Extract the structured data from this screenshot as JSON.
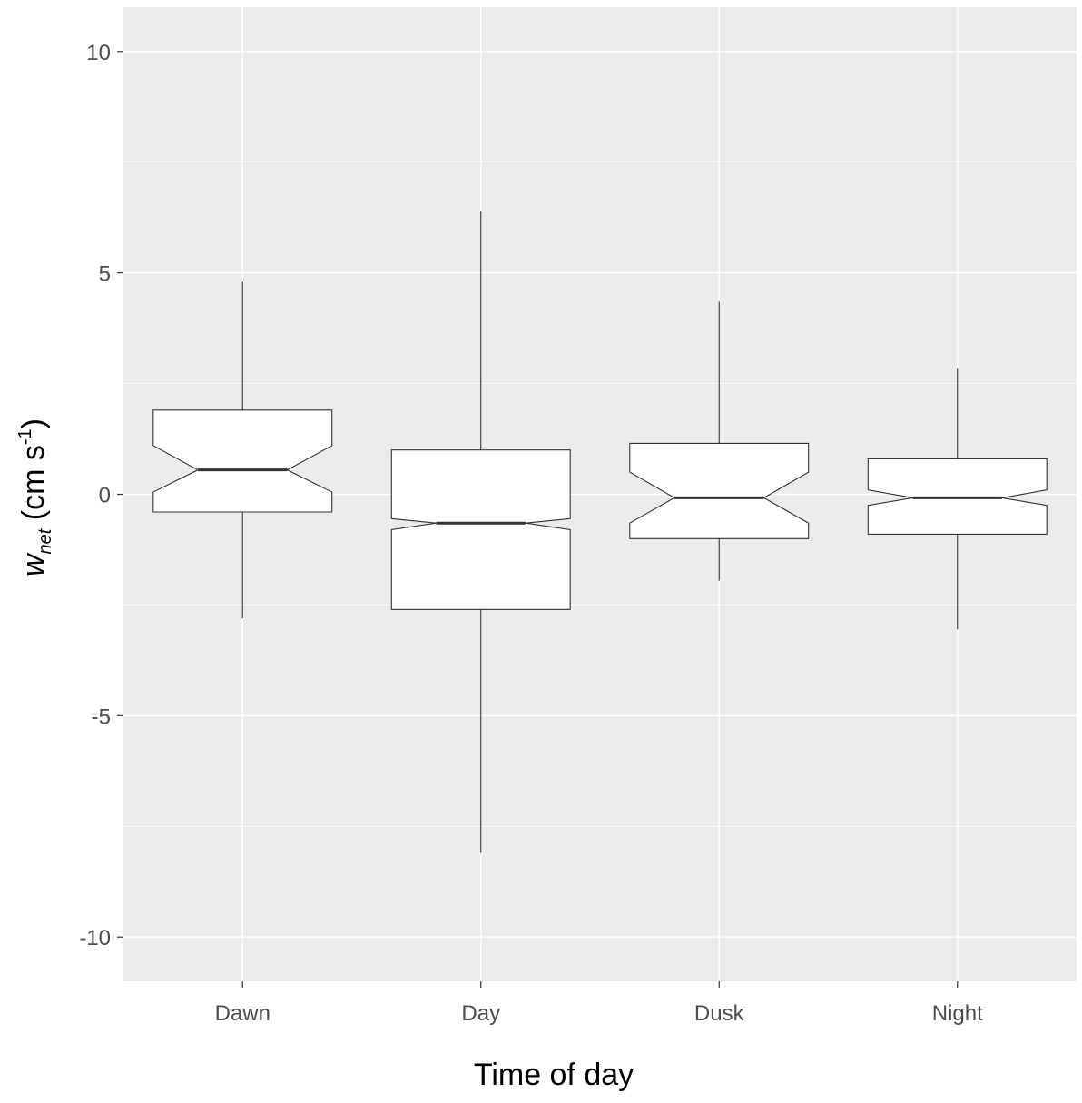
{
  "chart_data": {
    "type": "boxplot",
    "notched": true,
    "title": "",
    "xlabel": "Time of day",
    "ylabel": {
      "main": "w",
      "subscript": "net",
      "unit_prefix": " (cm s",
      "superscript": "-1",
      "unit_suffix": ")"
    },
    "categories": [
      "Dawn",
      "Day",
      "Dusk",
      "Night"
    ],
    "ylim": [
      -11,
      11
    ],
    "yticks": [
      -10,
      -5,
      0,
      5,
      10
    ],
    "ytick_labels": [
      "-10",
      "-5",
      "0",
      "5",
      "10"
    ],
    "grid": true,
    "boxes": [
      {
        "category": "Dawn",
        "whisker_low": -2.8,
        "q1": -0.4,
        "median": 0.55,
        "q3": 1.9,
        "whisker_high": 4.8,
        "notch_low": 0.05,
        "notch_high": 1.1
      },
      {
        "category": "Day",
        "whisker_low": -8.1,
        "q1": -2.6,
        "median": -0.65,
        "q3": 1.0,
        "whisker_high": 6.4,
        "notch_low": -0.8,
        "notch_high": -0.55
      },
      {
        "category": "Dusk",
        "whisker_low": -1.95,
        "q1": -1.0,
        "median": -0.08,
        "q3": 1.15,
        "whisker_high": 4.35,
        "notch_low": -0.65,
        "notch_high": 0.5
      },
      {
        "category": "Night",
        "whisker_low": -3.05,
        "q1": -0.9,
        "median": -0.08,
        "q3": 0.8,
        "whisker_high": 2.85,
        "notch_low": -0.25,
        "notch_high": 0.1
      }
    ]
  }
}
